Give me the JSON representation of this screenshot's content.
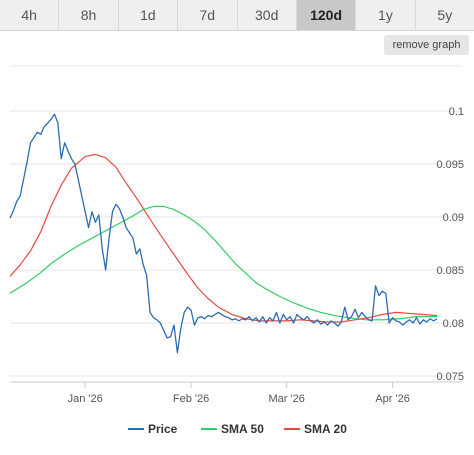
{
  "tabs": [
    {
      "label": "4h",
      "active": false
    },
    {
      "label": "8h",
      "active": false
    },
    {
      "label": "1d",
      "active": false
    },
    {
      "label": "7d",
      "active": false
    },
    {
      "label": "30d",
      "active": false
    },
    {
      "label": "120d",
      "active": true
    },
    {
      "label": "1y",
      "active": false
    },
    {
      "label": "5y",
      "active": false
    }
  ],
  "remove_graph_label": "remove graph",
  "chart_data": {
    "type": "line",
    "ylim": [
      0.075,
      0.1
    ],
    "x_range": [
      "2025-12-10",
      "2026-04-14"
    ],
    "y_ticks": [
      {
        "value": 0.1,
        "label": "0.1"
      },
      {
        "value": 0.095,
        "label": "0.095"
      },
      {
        "value": 0.09,
        "label": "0.09"
      },
      {
        "value": 0.085,
        "label": "0.085"
      },
      {
        "value": 0.08,
        "label": "0.08"
      },
      {
        "value": 0.075,
        "label": "0.075"
      }
    ],
    "x_ticks": [
      {
        "date": "2026-01-01",
        "label": "Jan '26"
      },
      {
        "date": "2026-02-01",
        "label": "Feb '26"
      },
      {
        "date": "2026-03-01",
        "label": "Mar '26"
      },
      {
        "date": "2026-04-01",
        "label": "Apr '26"
      }
    ],
    "grid": "horizontal",
    "legend_position": "bottom",
    "series": [
      {
        "name": "Price",
        "color": "#2b6cb0",
        "points": [
          [
            "2025-12-10",
            0.0899
          ],
          [
            "2025-12-11",
            0.0906
          ],
          [
            "2025-12-12",
            0.0915
          ],
          [
            "2025-12-13",
            0.092
          ],
          [
            "2025-12-14",
            0.0936
          ],
          [
            "2025-12-15",
            0.0952
          ],
          [
            "2025-12-16",
            0.097
          ],
          [
            "2025-12-17",
            0.0975
          ],
          [
            "2025-12-18",
            0.098
          ],
          [
            "2025-12-19",
            0.0978
          ],
          [
            "2025-12-20",
            0.0985
          ],
          [
            "2025-12-22",
            0.0992
          ],
          [
            "2025-12-23",
            0.0997
          ],
          [
            "2025-12-24",
            0.0989
          ],
          [
            "2025-12-25",
            0.0955
          ],
          [
            "2025-12-26",
            0.097
          ],
          [
            "2025-12-27",
            0.0962
          ],
          [
            "2025-12-28",
            0.0955
          ],
          [
            "2025-12-29",
            0.095
          ],
          [
            "2025-12-30",
            0.0935
          ],
          [
            "2026-01-01",
            0.0905
          ],
          [
            "2026-01-02",
            0.089
          ],
          [
            "2026-01-03",
            0.0905
          ],
          [
            "2026-01-04",
            0.0895
          ],
          [
            "2026-01-05",
            0.0902
          ],
          [
            "2026-01-06",
            0.087
          ],
          [
            "2026-01-07",
            0.085
          ],
          [
            "2026-01-08",
            0.088
          ],
          [
            "2026-01-09",
            0.0905
          ],
          [
            "2026-01-10",
            0.0912
          ],
          [
            "2026-01-11",
            0.0908
          ],
          [
            "2026-01-12",
            0.09
          ],
          [
            "2026-01-13",
            0.089
          ],
          [
            "2026-01-14",
            0.0885
          ],
          [
            "2026-01-15",
            0.088
          ],
          [
            "2026-01-16",
            0.0865
          ],
          [
            "2026-01-17",
            0.087
          ],
          [
            "2026-01-18",
            0.0855
          ],
          [
            "2026-01-19",
            0.0845
          ],
          [
            "2026-01-20",
            0.081
          ],
          [
            "2026-01-21",
            0.0805
          ],
          [
            "2026-01-22",
            0.0803
          ],
          [
            "2026-01-23",
            0.08
          ],
          [
            "2026-01-24",
            0.0793
          ],
          [
            "2026-01-25",
            0.0786
          ],
          [
            "2026-01-26",
            0.0787
          ],
          [
            "2026-01-27",
            0.0798
          ],
          [
            "2026-01-28",
            0.0772
          ],
          [
            "2026-01-29",
            0.0795
          ],
          [
            "2026-01-30",
            0.081
          ],
          [
            "2026-01-31",
            0.0815
          ],
          [
            "2026-02-01",
            0.0812
          ],
          [
            "2026-02-02",
            0.0798
          ],
          [
            "2026-02-03",
            0.0805
          ],
          [
            "2026-02-04",
            0.0806
          ],
          [
            "2026-02-05",
            0.0804
          ],
          [
            "2026-02-06",
            0.0807
          ],
          [
            "2026-02-07",
            0.0806
          ],
          [
            "2026-02-08",
            0.0808
          ],
          [
            "2026-02-09",
            0.081
          ],
          [
            "2026-02-10",
            0.0808
          ],
          [
            "2026-02-11",
            0.0806
          ],
          [
            "2026-02-12",
            0.0805
          ],
          [
            "2026-02-13",
            0.0803
          ],
          [
            "2026-02-14",
            0.0804
          ],
          [
            "2026-02-15",
            0.0802
          ],
          [
            "2026-02-16",
            0.0804
          ],
          [
            "2026-02-17",
            0.0803
          ],
          [
            "2026-02-18",
            0.0806
          ],
          [
            "2026-02-19",
            0.0802
          ],
          [
            "2026-02-20",
            0.0805
          ],
          [
            "2026-02-21",
            0.0801
          ],
          [
            "2026-02-22",
            0.0806
          ],
          [
            "2026-02-23",
            0.08
          ],
          [
            "2026-02-24",
            0.0805
          ],
          [
            "2026-02-25",
            0.0802
          ],
          [
            "2026-02-26",
            0.081
          ],
          [
            "2026-02-27",
            0.08
          ],
          [
            "2026-02-28",
            0.0808
          ],
          [
            "2026-03-01",
            0.0803
          ],
          [
            "2026-03-02",
            0.0806
          ],
          [
            "2026-03-03",
            0.08
          ],
          [
            "2026-03-04",
            0.0808
          ],
          [
            "2026-03-05",
            0.0805
          ],
          [
            "2026-03-06",
            0.0803
          ],
          [
            "2026-03-07",
            0.0806
          ],
          [
            "2026-03-08",
            0.0802
          ],
          [
            "2026-03-09",
            0.08
          ],
          [
            "2026-03-10",
            0.0803
          ],
          [
            "2026-03-11",
            0.0799
          ],
          [
            "2026-03-12",
            0.0801
          ],
          [
            "2026-03-13",
            0.0798
          ],
          [
            "2026-03-14",
            0.0802
          ],
          [
            "2026-03-15",
            0.08
          ],
          [
            "2026-03-16",
            0.0797
          ],
          [
            "2026-03-17",
            0.0801
          ],
          [
            "2026-03-18",
            0.0815
          ],
          [
            "2026-03-19",
            0.0803
          ],
          [
            "2026-03-20",
            0.0806
          ],
          [
            "2026-03-21",
            0.0813
          ],
          [
            "2026-03-22",
            0.0805
          ],
          [
            "2026-03-23",
            0.081
          ],
          [
            "2026-03-24",
            0.0806
          ],
          [
            "2026-03-25",
            0.0803
          ],
          [
            "2026-03-26",
            0.0802
          ],
          [
            "2026-03-27",
            0.0835
          ],
          [
            "2026-03-28",
            0.0826
          ],
          [
            "2026-03-29",
            0.083
          ],
          [
            "2026-03-30",
            0.0828
          ],
          [
            "2026-03-31",
            0.08
          ],
          [
            "2026-04-01",
            0.0805
          ],
          [
            "2026-04-02",
            0.0802
          ],
          [
            "2026-04-03",
            0.0801
          ],
          [
            "2026-04-04",
            0.0798
          ],
          [
            "2026-04-05",
            0.0801
          ],
          [
            "2026-04-06",
            0.0803
          ],
          [
            "2026-04-07",
            0.08
          ],
          [
            "2026-04-08",
            0.0805
          ],
          [
            "2026-04-09",
            0.0799
          ],
          [
            "2026-04-10",
            0.0803
          ],
          [
            "2026-04-11",
            0.0801
          ],
          [
            "2026-04-12",
            0.0804
          ],
          [
            "2026-04-13",
            0.0802
          ],
          [
            "2026-04-14",
            0.0804
          ]
        ]
      },
      {
        "name": "SMA 50",
        "color": "#33cc66",
        "points": [
          [
            "2025-12-10",
            0.0828
          ],
          [
            "2025-12-14",
            0.0836
          ],
          [
            "2025-12-18",
            0.0845
          ],
          [
            "2025-12-22",
            0.0856
          ],
          [
            "2025-12-26",
            0.0865
          ],
          [
            "2025-12-30",
            0.0873
          ],
          [
            "2026-01-03",
            0.088
          ],
          [
            "2026-01-07",
            0.0887
          ],
          [
            "2026-01-11",
            0.0894
          ],
          [
            "2026-01-15",
            0.0901
          ],
          [
            "2026-01-18",
            0.0907
          ],
          [
            "2026-01-21",
            0.091
          ],
          [
            "2026-01-24",
            0.091
          ],
          [
            "2026-01-27",
            0.0907
          ],
          [
            "2026-01-30",
            0.0902
          ],
          [
            "2026-02-02",
            0.0896
          ],
          [
            "2026-02-05",
            0.0888
          ],
          [
            "2026-02-08",
            0.0878
          ],
          [
            "2026-02-11",
            0.0867
          ],
          [
            "2026-02-14",
            0.0856
          ],
          [
            "2026-02-17",
            0.0847
          ],
          [
            "2026-02-20",
            0.0838
          ],
          [
            "2026-02-23",
            0.0832
          ],
          [
            "2026-02-27",
            0.0825
          ],
          [
            "2026-03-03",
            0.0819
          ],
          [
            "2026-03-07",
            0.0814
          ],
          [
            "2026-03-11",
            0.081
          ],
          [
            "2026-03-15",
            0.0807
          ],
          [
            "2026-03-19",
            0.0805
          ],
          [
            "2026-03-24",
            0.0803
          ],
          [
            "2026-03-29",
            0.0803
          ],
          [
            "2026-04-03",
            0.0804
          ],
          [
            "2026-04-08",
            0.0806
          ],
          [
            "2026-04-14",
            0.0806
          ]
        ]
      },
      {
        "name": "SMA 20",
        "color": "#e8493d",
        "points": [
          [
            "2025-12-10",
            0.0844
          ],
          [
            "2025-12-13",
            0.0855
          ],
          [
            "2025-12-16",
            0.0868
          ],
          [
            "2025-12-19",
            0.0886
          ],
          [
            "2025-12-22",
            0.091
          ],
          [
            "2025-12-25",
            0.093
          ],
          [
            "2025-12-28",
            0.0946
          ],
          [
            "2026-01-01",
            0.0957
          ],
          [
            "2026-01-04",
            0.0959
          ],
          [
            "2026-01-07",
            0.0956
          ],
          [
            "2026-01-10",
            0.0947
          ],
          [
            "2026-01-13",
            0.0932
          ],
          [
            "2026-01-16",
            0.0918
          ],
          [
            "2026-01-19",
            0.0903
          ],
          [
            "2026-01-22",
            0.0888
          ],
          [
            "2026-01-25",
            0.0874
          ],
          [
            "2026-01-28",
            0.086
          ],
          [
            "2026-01-31",
            0.0846
          ],
          [
            "2026-02-03",
            0.0833
          ],
          [
            "2026-02-06",
            0.0823
          ],
          [
            "2026-02-09",
            0.0815
          ],
          [
            "2026-02-13",
            0.0808
          ],
          [
            "2026-02-17",
            0.0804
          ],
          [
            "2026-02-21",
            0.0802
          ],
          [
            "2026-02-25",
            0.0802
          ],
          [
            "2026-03-01",
            0.0802
          ],
          [
            "2026-03-05",
            0.0803
          ],
          [
            "2026-03-09",
            0.0802
          ],
          [
            "2026-03-13",
            0.0801
          ],
          [
            "2026-03-17",
            0.0801
          ],
          [
            "2026-03-21",
            0.0803
          ],
          [
            "2026-03-25",
            0.0805
          ],
          [
            "2026-03-29",
            0.0808
          ],
          [
            "2026-04-02",
            0.081
          ],
          [
            "2026-04-06",
            0.0809
          ],
          [
            "2026-04-10",
            0.0808
          ],
          [
            "2026-04-14",
            0.0807
          ]
        ]
      }
    ]
  }
}
